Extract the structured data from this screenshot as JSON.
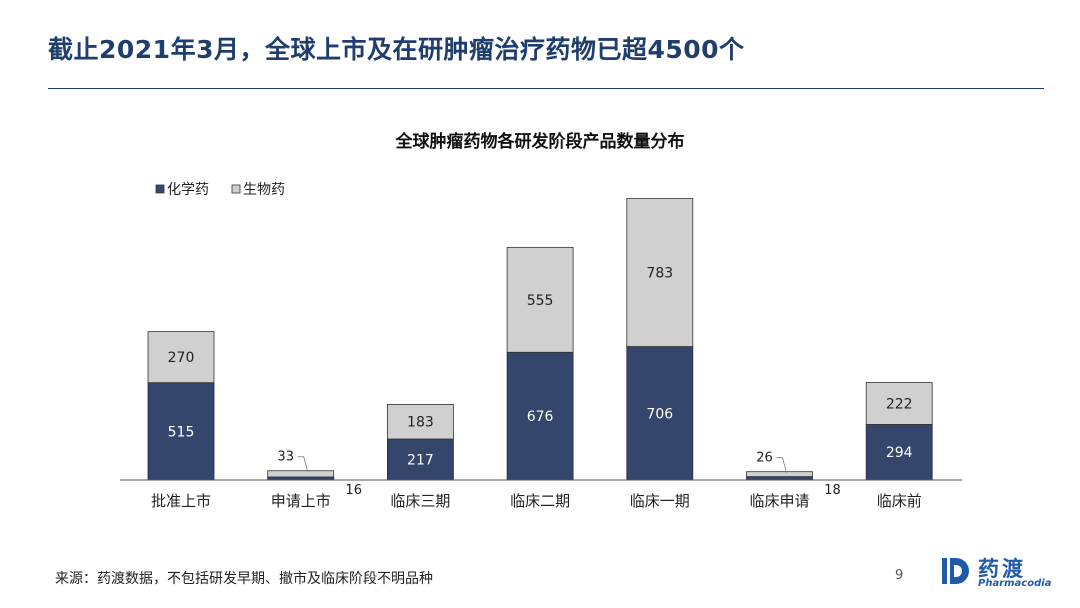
{
  "slide": {
    "title": "截止2021年3月，全球上市及在研肿瘤治疗药物已超4500个",
    "source": "来源：药渡数据，不包括研发早期、撤市及临床阶段不明品种",
    "page_number": "9"
  },
  "brand": {
    "name": "药渡",
    "sub": "Pharmacodia",
    "color": "#1F5BA8"
  },
  "chart_data": {
    "type": "bar",
    "stacked": true,
    "title": "全球肿瘤药物各研发阶段产品数量分布",
    "categories": [
      "批准上市",
      "申请上市",
      "临床三期",
      "临床二期",
      "临床一期",
      "临床申请",
      "临床前"
    ],
    "series": [
      {
        "name": "化学药",
        "values": [
          515,
          16,
          217,
          676,
          706,
          18,
          294
        ],
        "color": "#34466B"
      },
      {
        "name": "生物药",
        "values": [
          270,
          33,
          183,
          555,
          783,
          26,
          222
        ],
        "color": "#D0D0D0"
      }
    ],
    "ylim": [
      0,
      1600
    ],
    "legend_position": "top-left",
    "grid": false
  }
}
